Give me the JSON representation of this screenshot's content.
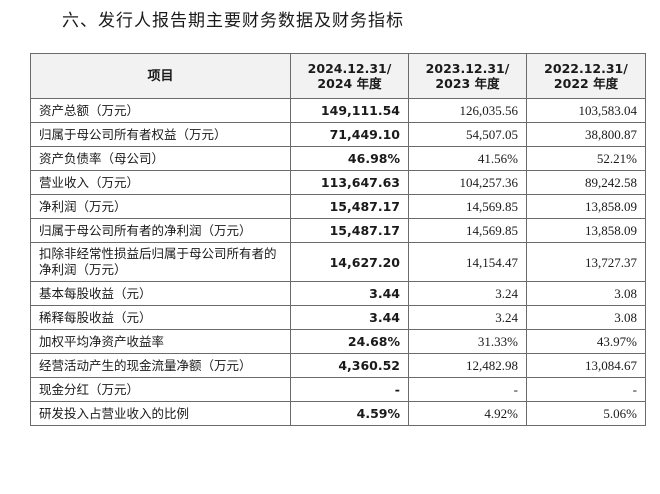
{
  "section_title": "六、发行人报告期主要财务数据及财务指标",
  "table": {
    "headers": [
      {
        "line1": "项目",
        "line2": ""
      },
      {
        "line1": "2024.12.31/",
        "line2": "2024 年度"
      },
      {
        "line1": "2023.12.31/",
        "line2": "2023 年度"
      },
      {
        "line1": "2022.12.31/",
        "line2": "2022 年度"
      }
    ],
    "rows": [
      {
        "label": "资产总额（万元）",
        "v2024": "149,111.54",
        "v2023": "126,035.56",
        "v2022": "103,583.04"
      },
      {
        "label": "归属于母公司所有者权益（万元）",
        "v2024": "71,449.10",
        "v2023": "54,507.05",
        "v2022": "38,800.87"
      },
      {
        "label": "资产负债率（母公司）",
        "v2024": "46.98%",
        "v2023": "41.56%",
        "v2022": "52.21%"
      },
      {
        "label": "营业收入（万元）",
        "v2024": "113,647.63",
        "v2023": "104,257.36",
        "v2022": "89,242.58"
      },
      {
        "label": "净利润（万元）",
        "v2024": "15,487.17",
        "v2023": "14,569.85",
        "v2022": "13,858.09"
      },
      {
        "label": "归属于母公司所有者的净利润（万元）",
        "v2024": "15,487.17",
        "v2023": "14,569.85",
        "v2022": "13,858.09"
      },
      {
        "label": "扣除非经常性损益后归属于母公司所有者的净利润（万元）",
        "v2024": "14,627.20",
        "v2023": "14,154.47",
        "v2022": "13,727.37"
      },
      {
        "label": "基本每股收益（元）",
        "v2024": "3.44",
        "v2023": "3.24",
        "v2022": "3.08"
      },
      {
        "label": "稀释每股收益（元）",
        "v2024": "3.44",
        "v2023": "3.24",
        "v2022": "3.08"
      },
      {
        "label": "加权平均净资产收益率",
        "v2024": "24.68%",
        "v2023": "31.33%",
        "v2022": "43.97%"
      },
      {
        "label": "经营活动产生的现金流量净额（万元）",
        "v2024": "4,360.52",
        "v2023": "12,482.98",
        "v2022": "13,084.67"
      },
      {
        "label": "现金分红（万元）",
        "v2024": "-",
        "v2023": "-",
        "v2022": "-"
      },
      {
        "label": "研发投入占营业收入的比例",
        "v2024": "4.59%",
        "v2023": "4.92%",
        "v2022": "5.06%"
      }
    ]
  }
}
